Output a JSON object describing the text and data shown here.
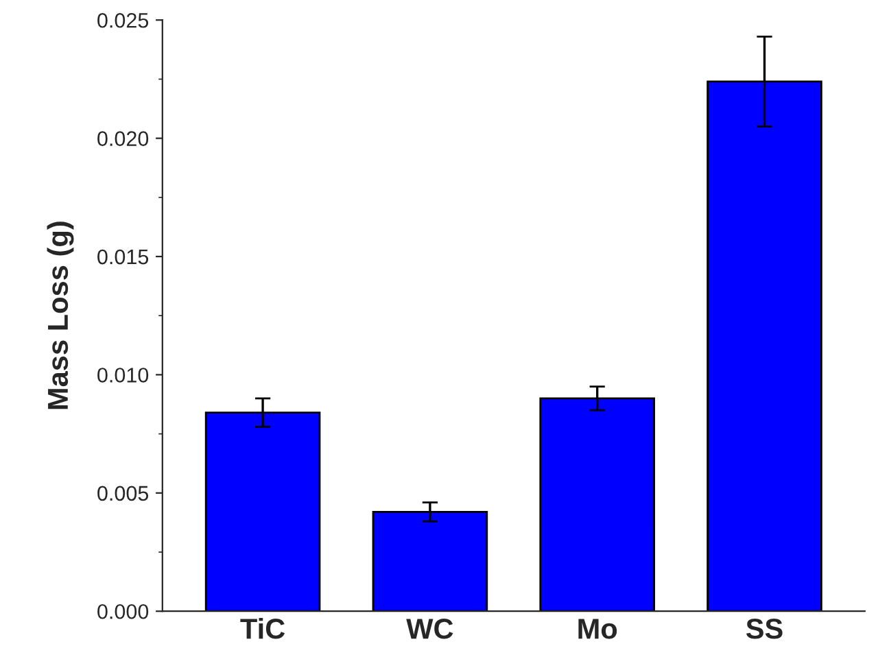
{
  "chart_data": {
    "type": "bar",
    "ylabel": "Mass Loss (g)",
    "categories": [
      "TiC",
      "WC",
      "Mo",
      "SS"
    ],
    "values": [
      0.0084,
      0.0042,
      0.009,
      0.0224
    ],
    "errors": [
      0.0006,
      0.0004,
      0.0005,
      0.0019
    ],
    "color": "#0000ff",
    "ylim": [
      0,
      0.025
    ],
    "yticks": [
      {
        "value": 0,
        "label": "0.000"
      },
      {
        "value": 0.005,
        "label": "0.005"
      },
      {
        "value": 0.01,
        "label": "0.010"
      },
      {
        "value": 0.015,
        "label": "0.015"
      },
      {
        "value": 0.02,
        "label": "0.020"
      },
      {
        "value": 0.025,
        "label": "0.025"
      }
    ],
    "grid": false
  }
}
